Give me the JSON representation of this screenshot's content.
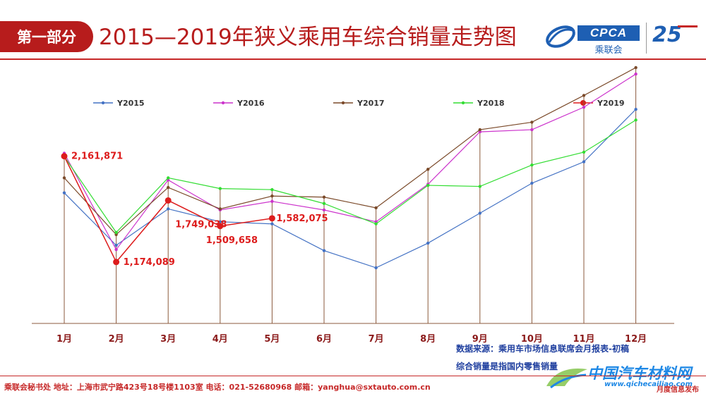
{
  "header": {
    "section_label": "第一部分",
    "title": "2015—2019年狭义乘用车综合销量走势图",
    "logo_cpca": "CPCA",
    "logo_cpca_sub": "乘联会",
    "logo_anniv": "25"
  },
  "notes": {
    "source": "数据来源：乘用车市场信息联席会月报表-初稿",
    "definition": "综合销量是指国内零售销量"
  },
  "footer": {
    "text": "乘联会秘书处   地址：上海市武宁路423号18号楼1103室  电话：021-52680968   邮箱：yanghua@sxtauto.com.cn"
  },
  "watermark": {
    "main": "中国汽车材料网",
    "sub": "www.qichecailiao.com",
    "tag": "月度信息发布"
  },
  "colors": {
    "title_red": "#b71c1c",
    "axis": "#8b5a3c"
  },
  "chart_data": {
    "type": "line",
    "title": "2015—2019年狭义乘用车综合销量走势图",
    "xlabel": "",
    "ylabel": "",
    "ylim": [
      600000,
      2700000
    ],
    "categories": [
      "1月",
      "2月",
      "3月",
      "4月",
      "5月",
      "6月",
      "7月",
      "8月",
      "9月",
      "10月",
      "11月",
      "12月"
    ],
    "legend_position": "top",
    "series": [
      {
        "name": "Y2015",
        "color": "#4472c4",
        "marker": "small",
        "values": [
          1820000,
          1330000,
          1670000,
          1550000,
          1530000,
          1280000,
          1120000,
          1350000,
          1630000,
          1910000,
          2110000,
          2600000
        ]
      },
      {
        "name": "Y2016",
        "color": "#cc33cc",
        "marker": "small",
        "values": [
          2190000,
          1290000,
          1940000,
          1660000,
          1740000,
          1660000,
          1550000,
          1900000,
          2390000,
          2410000,
          2620000,
          2930000
        ]
      },
      {
        "name": "Y2017",
        "color": "#7b4a2a",
        "marker": "small",
        "values": [
          1960000,
          1430000,
          1870000,
          1670000,
          1790000,
          1780000,
          1680000,
          2040000,
          2410000,
          2480000,
          2730000,
          2990000
        ]
      },
      {
        "name": "Y2018",
        "color": "#33dd33",
        "marker": "small",
        "values": [
          2160000,
          1450000,
          1960000,
          1860000,
          1850000,
          1720000,
          1530000,
          1890000,
          1880000,
          2080000,
          2200000,
          2500000
        ]
      },
      {
        "name": "Y2019",
        "color": "#dd1c1c",
        "marker": "large",
        "values": [
          2161871,
          1174089,
          1749038,
          1509658,
          1582075,
          null,
          null,
          null,
          null,
          null,
          null,
          null
        ],
        "labels": [
          "2,161,871",
          "1,174,089",
          "1,749,038",
          "1,509,658",
          "1,582,075"
        ]
      }
    ]
  }
}
